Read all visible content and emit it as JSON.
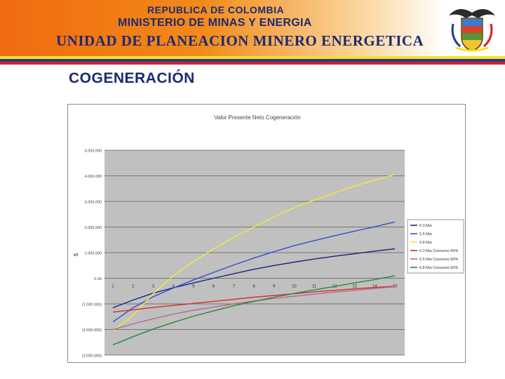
{
  "header": {
    "line1": "REPUBLICA DE COLOMBIA",
    "line2": "MINISTERIO DE MINAS Y ENERGIA",
    "line3": "UNIDAD DE PLANEACION MINERO ENERGETICA"
  },
  "colors": {
    "stripe_yellow": "#f7e21a",
    "stripe_blue": "#1e3c96",
    "stripe_red": "#d4202a",
    "title_blue": "#1e2a6e"
  },
  "slide_title": "COGENERACIÓN",
  "chart_data": {
    "type": "line",
    "title": "Valor Presente Neto Cogeneración",
    "xlabel": "",
    "ylabel": "$",
    "categories": [
      "1",
      "2",
      "3",
      "4",
      "5",
      "6",
      "7",
      "8",
      "9",
      "10",
      "11",
      "12",
      "13",
      "14",
      "15"
    ],
    "x": [
      1,
      2,
      3,
      4,
      5,
      6,
      7,
      8,
      9,
      10,
      11,
      12,
      13,
      14,
      15
    ],
    "ylim": [
      -3000000,
      5000000
    ],
    "yticks": [
      5000000,
      4000000,
      3000000,
      2000000,
      1000000,
      0,
      -1000000,
      -2000000,
      -3000000
    ],
    "ytick_labels": [
      "5.000.000",
      "4.000.000",
      "3.000.000",
      "2.000.000",
      "1.000.000",
      "0.00",
      "(1.000.000)",
      "(2.000.000)",
      "(3.000.000)"
    ],
    "grid": true,
    "legend_position": "right",
    "series": [
      {
        "name": "0.3 Mw",
        "color": "#1a237e",
        "values": [
          -1150000,
          -850000,
          -580000,
          -370000,
          -180000,
          0,
          180000,
          350000,
          500000,
          630000,
          750000,
          860000,
          960000,
          1060000,
          1150000
        ]
      },
      {
        "name": "0.5 Mw",
        "color": "#2e4fd6",
        "values": [
          -1700000,
          -1150000,
          -720000,
          -380000,
          -60000,
          230000,
          520000,
          790000,
          1040000,
          1270000,
          1470000,
          1660000,
          1840000,
          2010000,
          2200000
        ]
      },
      {
        "name": "0.8 Mw",
        "color": "#f2ea3a",
        "values": [
          -2050000,
          -1450000,
          -600000,
          100000,
          650000,
          1150000,
          1600000,
          2000000,
          2400000,
          2750000,
          3050000,
          3330000,
          3600000,
          3830000,
          4050000
        ]
      },
      {
        "name": "0.3 Mw Consumo 60%",
        "color": "#e02828",
        "values": [
          -1320000,
          -1230000,
          -1140000,
          -1060000,
          -980000,
          -900000,
          -820000,
          -740000,
          -670000,
          -600000,
          -530000,
          -470000,
          -410000,
          -360000,
          -310000
        ]
      },
      {
        "name": "0.5 Mw Consumo 60%",
        "color": "#b06a90",
        "values": [
          -2000000,
          -1780000,
          -1580000,
          -1400000,
          -1250000,
          -1120000,
          -1000000,
          -890000,
          -790000,
          -700000,
          -620000,
          -540000,
          -470000,
          -400000,
          -330000
        ]
      },
      {
        "name": "0.8 Mw Consumo 60%",
        "color": "#1f8a3a",
        "values": [
          -2600000,
          -2280000,
          -1980000,
          -1720000,
          -1480000,
          -1270000,
          -1070000,
          -900000,
          -740000,
          -590000,
          -450000,
          -320000,
          -180000,
          -50000,
          100000
        ]
      }
    ]
  }
}
